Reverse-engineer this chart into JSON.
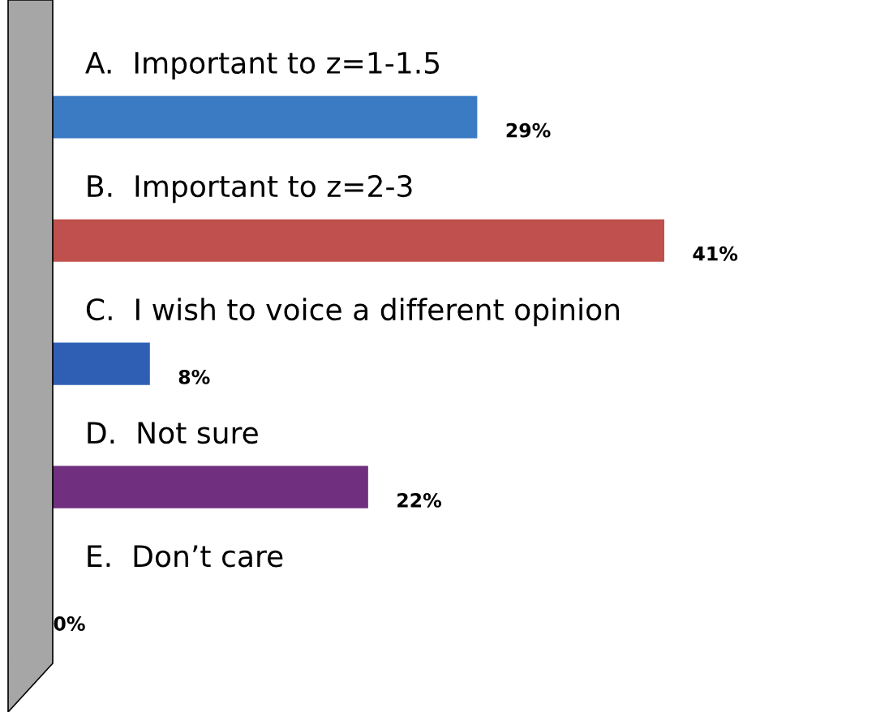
{
  "chart_data": {
    "type": "bar",
    "orientation": "horizontal",
    "categories": [
      "A.  Important to z=1-1.5",
      "B.  Important to z=2-3",
      "C.  I wish to voice a different opinion",
      "D.  Not sure",
      "E.  Don’t care"
    ],
    "values": [
      29,
      41,
      8,
      22,
      0
    ],
    "colors": [
      "#3b7bc4",
      "#c0504d",
      "#2f5fb5",
      "#70307f",
      "#7f7f7f"
    ],
    "value_labels": [
      "29%",
      "41%",
      "8%",
      "22%",
      "0%"
    ]
  }
}
